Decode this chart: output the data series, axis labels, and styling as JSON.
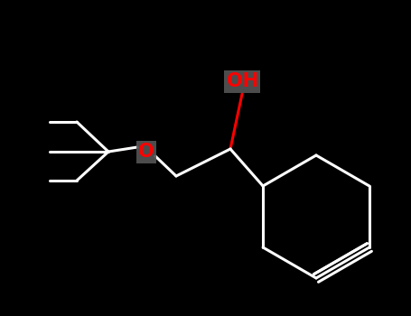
{
  "background_color": "#000000",
  "bond_color": "#ffffff",
  "oh_color": "#ff0000",
  "o_color": "#ff0000",
  "oh_label": "OH",
  "o_label": "O",
  "oh_label_color": "#ff0000",
  "o_label_color": "#ff0000",
  "oh_bg_color": "#555555",
  "o_bg_color": "#555555",
  "line_width": 2.2,
  "figsize": [
    4.55,
    3.5
  ],
  "dpi": 100
}
